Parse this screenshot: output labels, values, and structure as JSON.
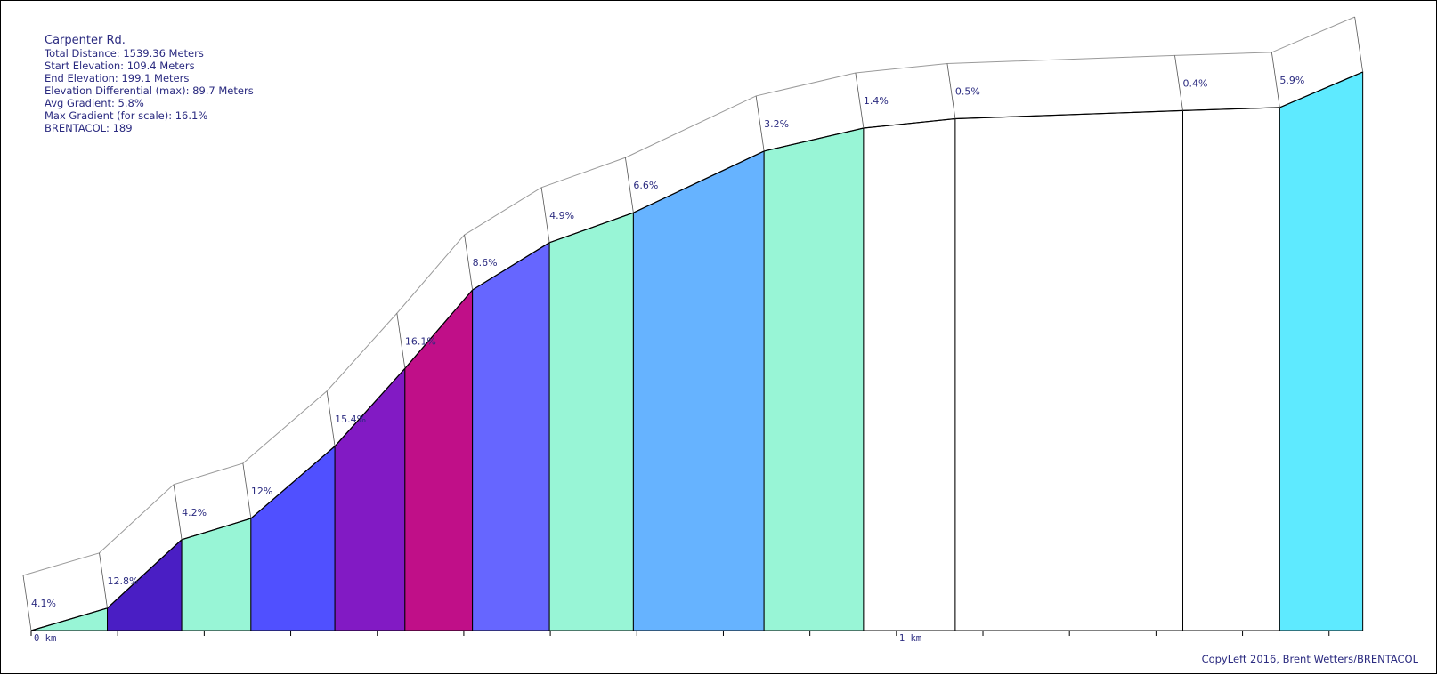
{
  "info": {
    "title": "Carpenter Rd.",
    "lines": [
      "Total Distance: 1539.36 Meters",
      "Start Elevation: 109.4 Meters",
      "End Elevation: 199.1 Meters",
      "Elevation Differential (max): 89.7 Meters",
      "Avg Gradient: 5.8%",
      "Max Gradient (for scale): 16.1%",
      "BRENTACOL: 189"
    ]
  },
  "copyright": "CopyLeft 2016, Brent Wetters/BRENTACOL",
  "chart_data": {
    "type": "area",
    "title": "Carpenter Rd.",
    "xlabel": "",
    "ylabel": "",
    "x_unit": "km",
    "xlim": [
      0,
      1.53936
    ],
    "ylim": [
      109.4,
      199.1
    ],
    "x_tick_labels": [
      "0 km",
      "1 km"
    ],
    "x_tick_interval_km": 0.1,
    "segments": [
      {
        "start_km": 0.0,
        "end_km": 0.088,
        "gradient_label": "4.1%",
        "color": "#98f5d6"
      },
      {
        "start_km": 0.088,
        "end_km": 0.174,
        "gradient_label": "12.8%",
        "color": "#4a1ec4"
      },
      {
        "start_km": 0.174,
        "end_km": 0.254,
        "gradient_label": "4.2%",
        "color": "#98f5d6"
      },
      {
        "start_km": 0.254,
        "end_km": 0.351,
        "gradient_label": "12%",
        "color": "#5050ff"
      },
      {
        "start_km": 0.351,
        "end_km": 0.432,
        "gradient_label": "15.4%",
        "color": "#821ac4"
      },
      {
        "start_km": 0.432,
        "end_km": 0.51,
        "gradient_label": "16.1%",
        "color": "#c00f88"
      },
      {
        "start_km": 0.51,
        "end_km": 0.599,
        "gradient_label": "8.6%",
        "color": "#6666ff"
      },
      {
        "start_km": 0.599,
        "end_km": 0.696,
        "gradient_label": "4.9%",
        "color": "#98f5d6"
      },
      {
        "start_km": 0.696,
        "end_km": 0.847,
        "gradient_label": "6.6%",
        "color": "#66b3ff"
      },
      {
        "start_km": 0.847,
        "end_km": 0.962,
        "gradient_label": "3.2%",
        "color": "#98f5d6"
      },
      {
        "start_km": 0.962,
        "end_km": 1.068,
        "gradient_label": "1.4%",
        "color": "#ffffff"
      },
      {
        "start_km": 1.068,
        "end_km": 1.331,
        "gradient_label": "0.5%",
        "color": "#ffffff"
      },
      {
        "start_km": 1.331,
        "end_km": 1.443,
        "gradient_label": "0.4%",
        "color": "#ffffff"
      },
      {
        "start_km": 1.443,
        "end_km": 1.539,
        "gradient_label": "5.9%",
        "color": "#5eeaff"
      }
    ],
    "elevation_profile": {
      "x_km": [
        0.0,
        0.088,
        0.174,
        0.254,
        0.351,
        0.432,
        0.51,
        0.599,
        0.696,
        0.847,
        0.962,
        1.068,
        1.331,
        1.443,
        1.539
      ],
      "elev_m": [
        109.4,
        113.0,
        124.0,
        127.4,
        139.0,
        151.5,
        164.1,
        171.7,
        176.5,
        186.4,
        190.1,
        191.6,
        192.9,
        193.4,
        199.1
      ]
    }
  }
}
